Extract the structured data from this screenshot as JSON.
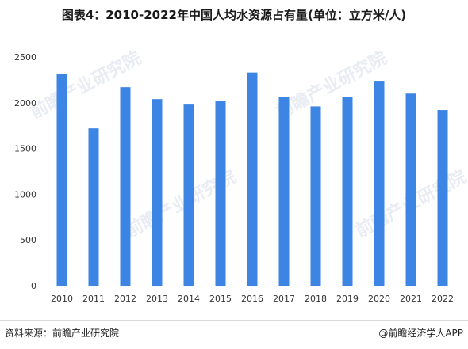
{
  "title": "图表4：2010-2022年中国人均水资源占有量(单位：立方米/人)",
  "source": "资料来源：前瞻产业研究院",
  "credit": "@前瞻经济学人APP",
  "watermark": "前瞻产业研究院",
  "colors": {
    "bar": "#3d85e4"
  },
  "chart_data": {
    "type": "bar",
    "categories": [
      "2010",
      "2011",
      "2012",
      "2013",
      "2014",
      "2015",
      "2016",
      "2017",
      "2018",
      "2019",
      "2020",
      "2021",
      "2022"
    ],
    "values": [
      2310,
      1720,
      2170,
      2040,
      1980,
      2020,
      2330,
      2060,
      1960,
      2060,
      2240,
      2100,
      1920
    ],
    "ylim": [
      0,
      2500
    ],
    "yticks": [
      0,
      500,
      1000,
      1500,
      2000,
      2500
    ],
    "xlabel": "",
    "ylabel": "",
    "grid": false,
    "legend": "none"
  }
}
